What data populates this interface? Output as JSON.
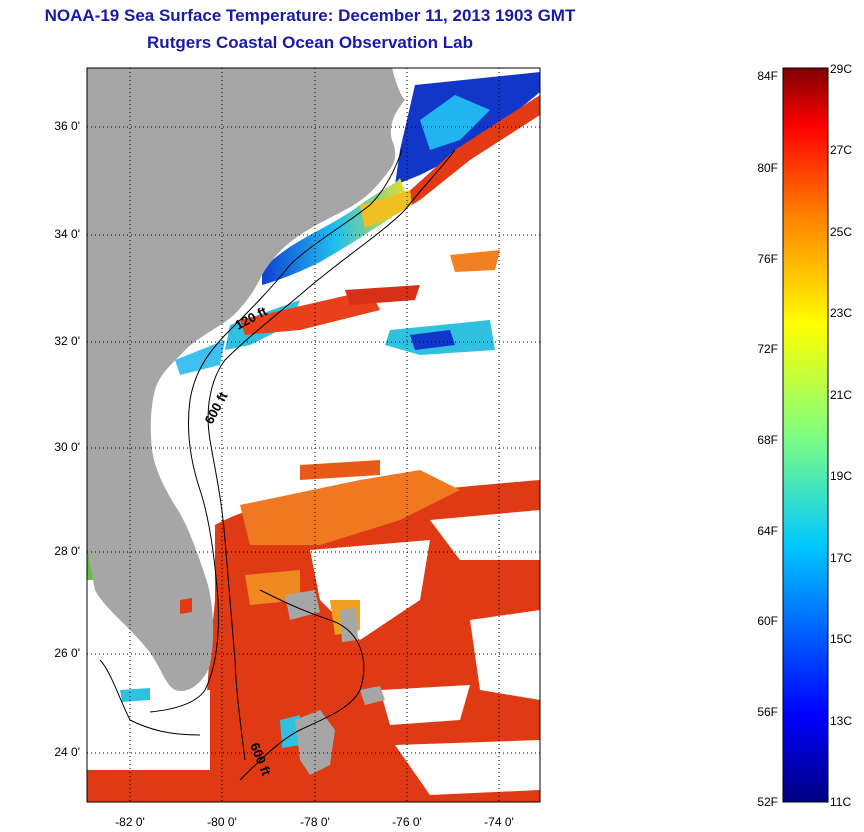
{
  "header": {
    "title": "NOAA-19 Sea Surface Temperature:  December 11, 2013 1903 GMT",
    "subtitle": "Rutgers Coastal Ocean Observation Lab"
  },
  "map": {
    "lat_ticks": [
      "36 0'",
      "34 0'",
      "32 0'",
      "30 0'",
      "28 0'",
      "26 0'",
      "24 0'"
    ],
    "lon_ticks": [
      "-82 0'",
      "-80 0'",
      "-78 0'",
      "-76 0'",
      "-74 0'"
    ],
    "contours": [
      "120 ft",
      "600 ft",
      "600 ft"
    ],
    "colors": {
      "land": "#a6a6a6",
      "cloud": "#ffffff",
      "warm": "#e03a14",
      "cold": "#1240c8"
    }
  },
  "colorbar": {
    "fahrenheit": [
      "84F",
      "80F",
      "76F",
      "72F",
      "68F",
      "64F",
      "60F",
      "56F",
      "52F"
    ],
    "celsius": [
      "29C",
      "27C",
      "25C",
      "23C",
      "21C",
      "19C",
      "17C",
      "15C",
      "13C",
      "11C"
    ]
  }
}
